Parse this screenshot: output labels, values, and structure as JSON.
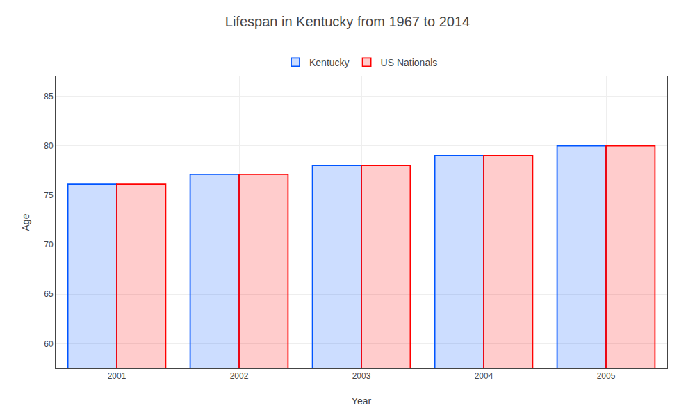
{
  "chart_data": {
    "type": "bar",
    "title": "Lifespan in Kentucky from 1967 to 2014",
    "xlabel": "Year",
    "ylabel": "Age",
    "categories": [
      "2001",
      "2002",
      "2003",
      "2004",
      "2005"
    ],
    "series": [
      {
        "name": "Kentucky",
        "color": "#0055ff",
        "values": [
          76.1,
          77.1,
          78.0,
          79.0,
          80.0
        ]
      },
      {
        "name": "US Nationals",
        "color": "#ff0000",
        "values": [
          76.1,
          77.1,
          78.0,
          79.0,
          80.0
        ]
      }
    ],
    "ylim": [
      57.5,
      87
    ],
    "yticks": [
      60,
      65,
      70,
      75,
      80,
      85
    ],
    "grid": true,
    "legend": "upper center"
  }
}
